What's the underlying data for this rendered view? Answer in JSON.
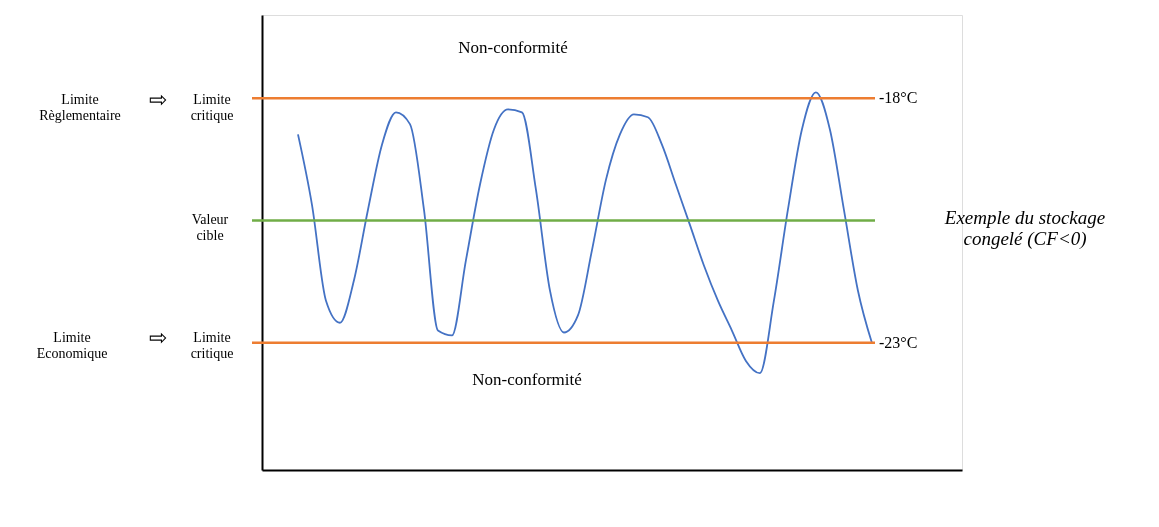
{
  "chart_data": {
    "type": "line",
    "categories": [
      null,
      null,
      null,
      null,
      null,
      null,
      null,
      null,
      null,
      null,
      null,
      null,
      null,
      null,
      null,
      null,
      null,
      null,
      null,
      null,
      null,
      null,
      null,
      null,
      null,
      null,
      null,
      null,
      null,
      null,
      null,
      null,
      null,
      null,
      null,
      null,
      null,
      null,
      null,
      null,
      null,
      null
    ],
    "values": [
      -18.74,
      -20.18,
      -22.14,
      -22.59,
      -21.72,
      -20.28,
      -18.95,
      -18.29,
      -18.53,
      -20.28,
      -22.75,
      -22.85,
      -21.31,
      -19.77,
      -18.64,
      -18.23,
      -18.29,
      -19.87,
      -21.93,
      -22.79,
      -22.44,
      -21.11,
      -19.67,
      -18.74,
      -18.33,
      -18.39,
      -18.95,
      -19.77,
      -20.59,
      -21.42,
      -22.14,
      -22.75,
      -23.37,
      -23.62,
      -22.14,
      -20.28,
      -18.64,
      -17.88,
      -18.64,
      -20.28,
      -21.93,
      -23.0
    ],
    "color": "#4472c4",
    "ylim": [
      -25.6,
      -16.3
    ],
    "tick_labels": false,
    "ref_lines": [
      {
        "axis": "y",
        "value": -18,
        "label": "-18°C",
        "color": "#ed7d31"
      },
      {
        "axis": "y",
        "value": -20.5,
        "label": "Valeur\ncible",
        "color": "#70ad47"
      },
      {
        "axis": "y",
        "value": -23,
        "label": "-23°C",
        "color": "#ed7d31"
      }
    ],
    "annotations": [
      "Non-conformité",
      "Non-conformité",
      "Limite\nRèglementaire",
      "⇨",
      "Limite\ncritique",
      "Limite\nEconomique",
      "⇨",
      "Limite\ncritique",
      "Exemple du stockage\ncongelé (CF<0)"
    ]
  }
}
